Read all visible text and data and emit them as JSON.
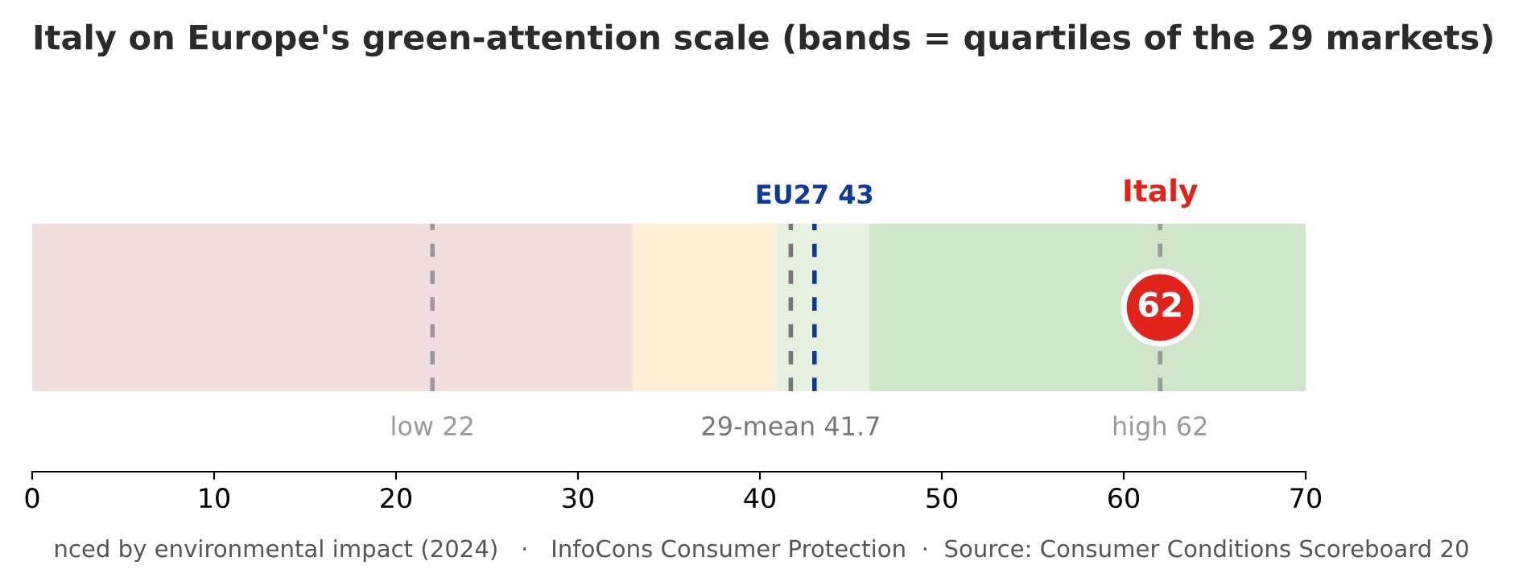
{
  "chart_data": {
    "type": "scatter",
    "orientation": "horizontal",
    "title": "Italy on Europe's green-attention scale (bands = quartiles of the 29 markets)",
    "categories": [
      null
    ],
    "series": [
      {
        "name": "Italy",
        "color": "#e0241b",
        "values": [
          62
        ],
        "value_labels": [
          "62"
        ]
      }
    ],
    "xlim": [
      0,
      70
    ],
    "xticks": [
      0,
      10,
      20,
      30,
      40,
      50,
      60,
      70
    ],
    "tick_labels": "x",
    "grid": false,
    "legend": false,
    "marker": "circle",
    "bands": [
      {
        "axis": "x",
        "from": 0,
        "to": 33,
        "color": "#f2dede"
      },
      {
        "axis": "x",
        "from": 33,
        "to": 40.9,
        "color": "#fcefd6"
      },
      {
        "axis": "x",
        "from": 40.9,
        "to": 46,
        "color": "#e5f0e0"
      },
      {
        "axis": "x",
        "from": 46,
        "to": 70,
        "color": "#cfe6cb"
      }
    ],
    "ref_lines": [
      {
        "axis": "x",
        "value": 22,
        "label": "low 22",
        "color": "#999999",
        "line_style": "dashed"
      },
      {
        "axis": "x",
        "value": 41.7,
        "label": "29-mean 41.7",
        "color": "#777777",
        "line_style": "dashed"
      },
      {
        "axis": "x",
        "value": 43,
        "label": "EU27 43",
        "color": "#0d3a99",
        "line_style": "dashed"
      },
      {
        "axis": "x",
        "value": 62,
        "label": "high 62",
        "color": "#999999",
        "line_style": "dashed"
      }
    ],
    "annotations": [
      "nced by environmental impact (2024)   ·   InfoCons Consumer Protection  ·  Source: Consumer Conditions Scoreboard 20"
    ]
  }
}
